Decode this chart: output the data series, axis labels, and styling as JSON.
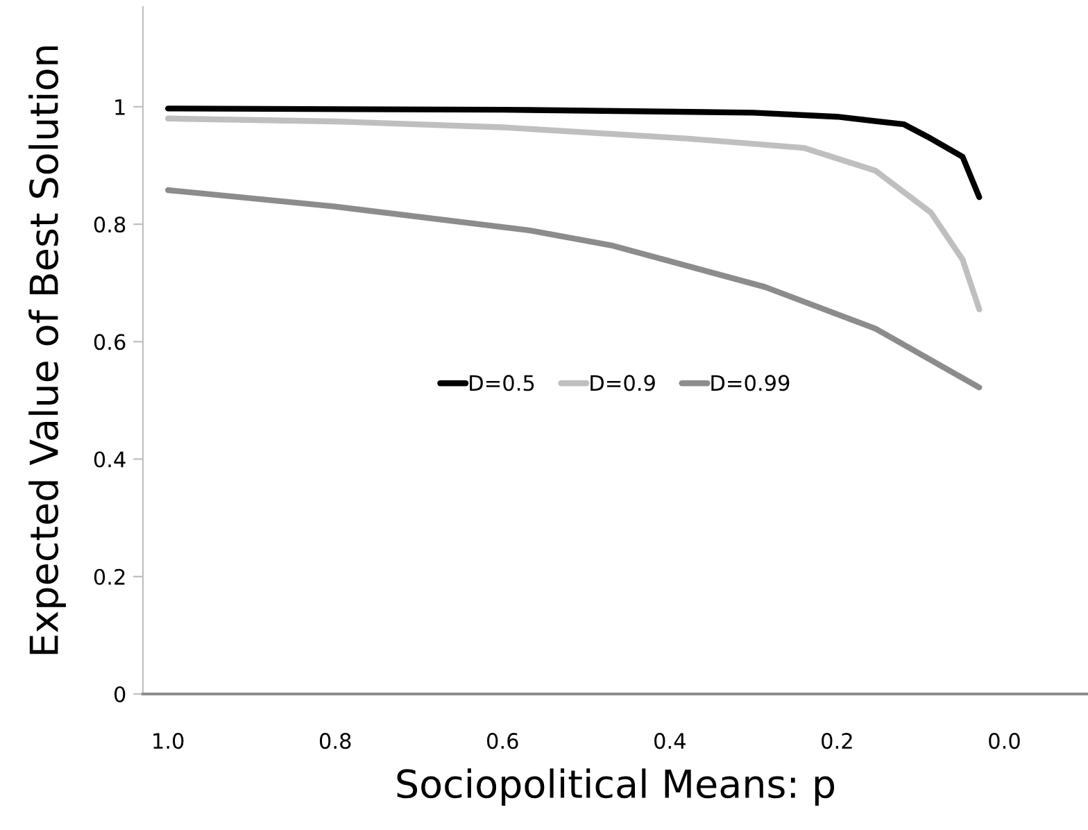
{
  "chart_data": {
    "type": "line",
    "xlabel": "Sociopolitical Means: p",
    "ylabel": "Expected Value of Best Solution",
    "xlim": [
      1.03,
      -0.1
    ],
    "xticks": [
      {
        "value": 1.0,
        "label": "1.0"
      },
      {
        "value": 0.8,
        "label": "0.8"
      },
      {
        "value": 0.6,
        "label": "0.6"
      },
      {
        "value": 0.4,
        "label": "0.4"
      },
      {
        "value": 0.2,
        "label": "0.2"
      },
      {
        "value": 0.0,
        "label": "0.0"
      }
    ],
    "ylim": [
      0,
      1.17
    ],
    "yticks": [
      0,
      0.2,
      0.4,
      0.6,
      0.8,
      1
    ],
    "series": [
      {
        "name": "D=0.5",
        "color": "#000000",
        "x": [
          1.0,
          0.6,
          0.3,
          0.2,
          0.12,
          0.088,
          0.05,
          0.03
        ],
        "values": [
          0.997,
          0.995,
          0.99,
          0.983,
          0.97,
          0.946,
          0.915,
          0.846
        ]
      },
      {
        "name": "D=0.9",
        "color": "#bfbfbf",
        "x": [
          1.0,
          0.8,
          0.6,
          0.38,
          0.24,
          0.154,
          0.088,
          0.05,
          0.03
        ],
        "values": [
          0.98,
          0.975,
          0.965,
          0.946,
          0.93,
          0.891,
          0.82,
          0.74,
          0.655
        ]
      },
      {
        "name": "D=0.99",
        "color": "#8c8c8c",
        "x": [
          1.0,
          0.8,
          0.57,
          0.47,
          0.286,
          0.154,
          0.03
        ],
        "values": [
          0.858,
          0.83,
          0.79,
          0.764,
          0.693,
          0.622,
          0.522
        ]
      }
    ],
    "legend": "center",
    "grid": false,
    "marker": "none",
    "line_style": "solid"
  }
}
